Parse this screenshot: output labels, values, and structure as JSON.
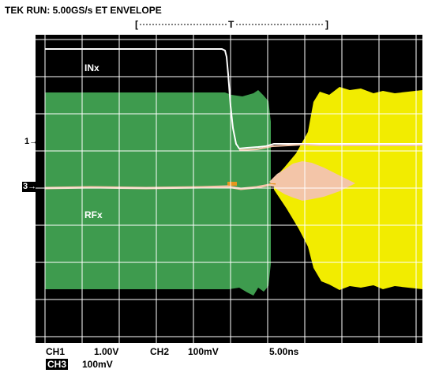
{
  "header": {
    "title": "TEK RUN: 5.00GS/s ET ENVELOPE"
  },
  "trigger": {
    "marker_label": "T"
  },
  "waveforms": {
    "ch1_label": "INx",
    "ch3_label": "RFx"
  },
  "channel_markers": {
    "ch1": "1→",
    "ch3": "3→"
  },
  "settings": {
    "ch1_label": "CH1",
    "ch1_scale": "1.00V",
    "ch2_label": "CH2",
    "ch2_scale": "100mV",
    "timebase": "5.00ns",
    "ch3_label": "CH3",
    "ch3_scale": "100mV"
  },
  "colors": {
    "screen_bg": "#000000",
    "grid": "#ffffff",
    "ch1": "#ffffff",
    "ch2": "#f2ec00",
    "ch3": "#3e9b4e",
    "overlap": "#f3c5a8",
    "trigger": "#e8961e"
  }
}
